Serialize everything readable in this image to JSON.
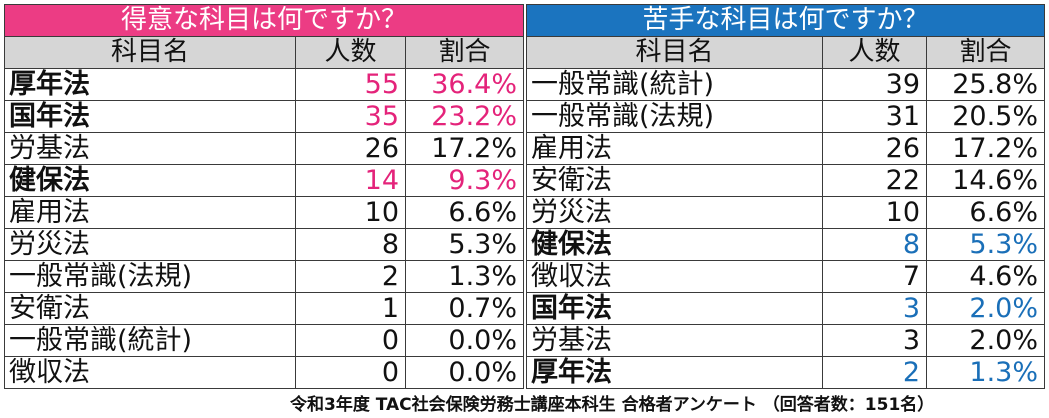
{
  "good": {
    "title": "得意な科目は何ですか？",
    "headers": [
      "科目名",
      "人数",
      "割合"
    ],
    "rows": [
      {
        "name": "厚年法",
        "count": "55",
        "pct": "36.4%",
        "hl": true
      },
      {
        "name": "国年法",
        "count": "35",
        "pct": "23.2%",
        "hl": true
      },
      {
        "name": "労基法",
        "count": "26",
        "pct": "17.2%",
        "hl": false
      },
      {
        "name": "健保法",
        "count": "14",
        "pct": "9.3%",
        "hl": true
      },
      {
        "name": "雇用法",
        "count": "10",
        "pct": "6.6%",
        "hl": false
      },
      {
        "name": "労災法",
        "count": "8",
        "pct": "5.3%",
        "hl": false
      },
      {
        "name": "一般常識(法規)",
        "count": "2",
        "pct": "1.3%",
        "hl": false
      },
      {
        "name": "安衛法",
        "count": "1",
        "pct": "0.7%",
        "hl": false
      },
      {
        "name": "一般常識(統計)",
        "count": "0",
        "pct": "0.0%",
        "hl": false
      },
      {
        "name": "徴収法",
        "count": "0",
        "pct": "0.0%",
        "hl": false
      }
    ]
  },
  "bad": {
    "title": "苦手な科目は何ですか？",
    "headers": [
      "科目名",
      "人数",
      "割合"
    ],
    "rows": [
      {
        "name": "一般常識(統計)",
        "count": "39",
        "pct": "25.8%",
        "hl": false
      },
      {
        "name": "一般常識(法規)",
        "count": "31",
        "pct": "20.5%",
        "hl": false
      },
      {
        "name": "雇用法",
        "count": "26",
        "pct": "17.2%",
        "hl": false
      },
      {
        "name": "安衛法",
        "count": "22",
        "pct": "14.6%",
        "hl": false
      },
      {
        "name": "労災法",
        "count": "10",
        "pct": "6.6%",
        "hl": false
      },
      {
        "name": "健保法",
        "count": "8",
        "pct": "5.3%",
        "hl": true
      },
      {
        "name": "徴収法",
        "count": "7",
        "pct": "4.6%",
        "hl": false
      },
      {
        "name": "国年法",
        "count": "3",
        "pct": "2.0%",
        "hl": true
      },
      {
        "name": "労基法",
        "count": "3",
        "pct": "2.0%",
        "hl": false
      },
      {
        "name": "厚年法",
        "count": "2",
        "pct": "1.3%",
        "hl": true
      }
    ]
  },
  "colors": {
    "good_accent": "#ec3c84",
    "bad_accent": "#1b74bf",
    "header_gray": "#d6d6d6"
  },
  "source_note": "令和3年度 TAC社会保険労務士講座本科生 合格者アンケート （回答者数：151名）"
}
